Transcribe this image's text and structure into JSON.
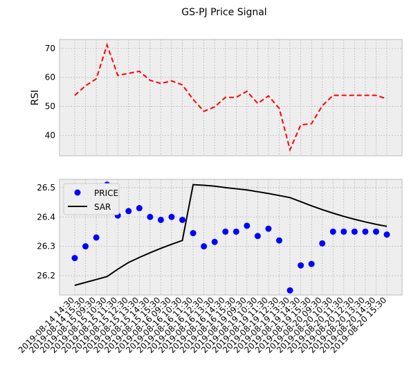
{
  "chart_data": [
    {
      "type": "line",
      "title": "GS-PJ Price Signal",
      "ylabel": "RSI",
      "values": [
        53.8,
        57.1,
        59.5,
        71.2,
        60.7,
        61.4,
        62.1,
        59.0,
        57.9,
        58.8,
        57.4,
        52.4,
        48.3,
        49.8,
        53.1,
        53.1,
        55.2,
        51.0,
        53.6,
        49.3,
        35.0,
        43.6,
        44.0,
        50.2,
        53.8,
        53.8,
        53.8,
        53.8,
        53.8,
        52.6
      ],
      "color": "#ff0000",
      "linestyle": "dashed",
      "ylim": [
        32.9,
        73.1
      ],
      "yticks": [
        40,
        50,
        60,
        70
      ],
      "grid": true
    },
    {
      "type": "line",
      "legend": "upper left",
      "grid": true,
      "categories": [
        "2019-08-14 14:30",
        "2019-08-14 15:30",
        "2019-08-15 09:30",
        "2019-08-15 10:30",
        "2019-08-15 11:30",
        "2019-08-15 12:30",
        "2019-08-15 13:30",
        "2019-08-15 14:30",
        "2019-08-15 15:30",
        "2019-08-16 09:30",
        "2019-08-16 10:30",
        "2019-08-16 11:30",
        "2019-08-16 12:30",
        "2019-08-16 13:30",
        "2019-08-16 14:30",
        "2019-08-16 15:30",
        "2019-08-19 09:30",
        "2019-08-19 10:30",
        "2019-08-19 11:30",
        "2019-08-19 12:30",
        "2019-08-19 13:30",
        "2019-08-19 14:30",
        "2019-08-19 15:30",
        "2019-08-20 09:30",
        "2019-08-20 10:30",
        "2019-08-20 11:30",
        "2019-08-20 12:30",
        "2019-08-20 13:30",
        "2019-08-20 14:30",
        "2019-08-20 15:30"
      ],
      "series": [
        {
          "name": "PRICE",
          "type": "scatter",
          "color": "#0000ff",
          "values": [
            26.26,
            26.3,
            26.33,
            26.51,
            26.405,
            26.42,
            26.43,
            26.4,
            26.39,
            26.4,
            26.39,
            26.345,
            26.3,
            26.315,
            26.35,
            26.35,
            26.37,
            26.335,
            26.36,
            26.32,
            26.15,
            26.235,
            26.24,
            26.31,
            26.35,
            26.35,
            26.35,
            26.35,
            26.35,
            26.34
          ]
        },
        {
          "name": "SAR",
          "type": "line",
          "color": "#000000",
          "values": [
            26.167,
            26.177,
            26.187,
            26.197,
            26.222,
            26.245,
            26.262,
            26.278,
            26.293,
            26.307,
            26.32,
            26.51,
            26.508,
            26.505,
            26.5,
            26.496,
            26.492,
            26.486,
            26.48,
            26.473,
            26.466,
            26.452,
            26.438,
            26.425,
            26.413,
            26.402,
            26.392,
            26.383,
            26.375,
            26.368
          ]
        }
      ],
      "ylim": [
        26.134,
        26.528
      ],
      "yticks": [
        26.2,
        26.3,
        26.4,
        26.5
      ]
    }
  ]
}
